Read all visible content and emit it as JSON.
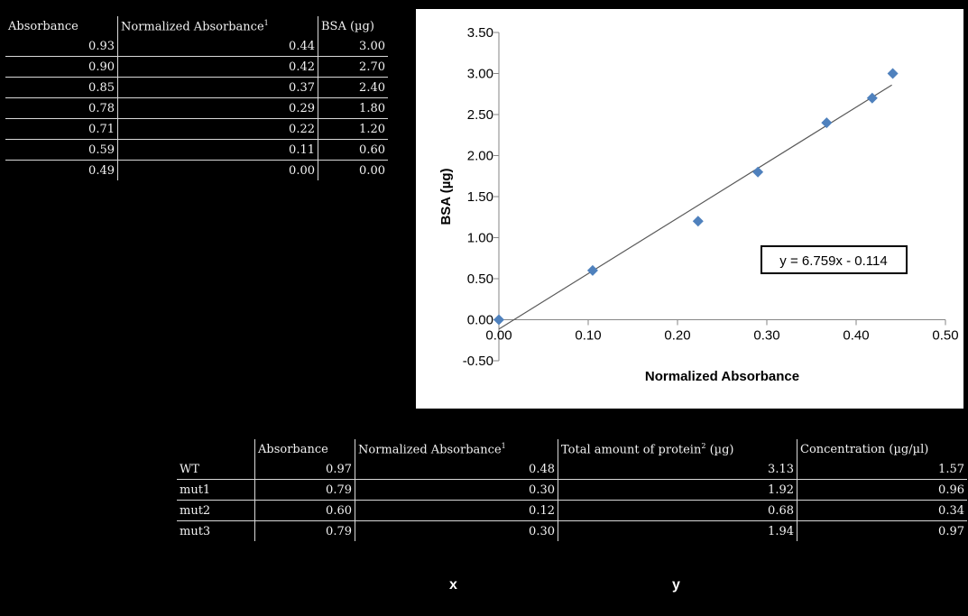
{
  "top_table": {
    "headers": [
      "Absorbance",
      "Normalized Absorbance",
      "BSA (µg)"
    ],
    "footnote_mark": "1",
    "rows": [
      [
        "0.93",
        "0.44",
        "3.00"
      ],
      [
        "0.90",
        "0.42",
        "2.70"
      ],
      [
        "0.85",
        "0.37",
        "2.40"
      ],
      [
        "0.78",
        "0.29",
        "1.80"
      ],
      [
        "0.71",
        "0.22",
        "1.20"
      ],
      [
        "0.59",
        "0.11",
        "0.60"
      ],
      [
        "0.49",
        "0.00",
        "0.00"
      ]
    ]
  },
  "bottom_table": {
    "headers": [
      "",
      "Absorbance",
      "Normalized Absorbance",
      "Total amount of protein",
      "Concentration (µg/µl)"
    ],
    "header_sup": [
      "",
      "",
      "1",
      "2",
      ""
    ],
    "protein_unit": " (µg)",
    "rows": [
      [
        "WT",
        "0.97",
        "0.48",
        "3.13",
        "1.57"
      ],
      [
        "mut1",
        "0.79",
        "0.30",
        "1.92",
        "0.96"
      ],
      [
        "mut2",
        "0.60",
        "0.12",
        "0.68",
        "0.34"
      ],
      [
        "mut3",
        "0.79",
        "0.30",
        "1.94",
        "0.97"
      ]
    ]
  },
  "column_markers": {
    "x": "x",
    "y": "y"
  },
  "chart_data": {
    "type": "scatter",
    "xlabel": "Normalized Absorbance",
    "ylabel": "BSA (µg)",
    "xlim": [
      0.0,
      0.5
    ],
    "ylim": [
      -0.5,
      3.5
    ],
    "x_ticks": [
      "0.00",
      "0.10",
      "0.20",
      "0.30",
      "0.40",
      "0.50"
    ],
    "y_ticks": [
      "3.50",
      "3.00",
      "2.50",
      "2.00",
      "1.50",
      "1.00",
      "0.50",
      "0.00",
      "-0.50"
    ],
    "series": [
      {
        "points": [
          [
            0.0,
            0.0
          ],
          [
            0.105,
            0.6
          ],
          [
            0.223,
            1.2
          ],
          [
            0.29,
            1.8
          ],
          [
            0.367,
            2.4
          ],
          [
            0.418,
            2.7
          ],
          [
            0.441,
            3.0
          ]
        ],
        "color": "#4f81bd"
      }
    ],
    "trendline": {
      "slope": 6.759,
      "intercept": -0.114,
      "x_range": [
        0.0,
        0.44
      ],
      "color": "#595959"
    },
    "equation_label": "y = 6.759x - 0.114",
    "grid": false
  }
}
